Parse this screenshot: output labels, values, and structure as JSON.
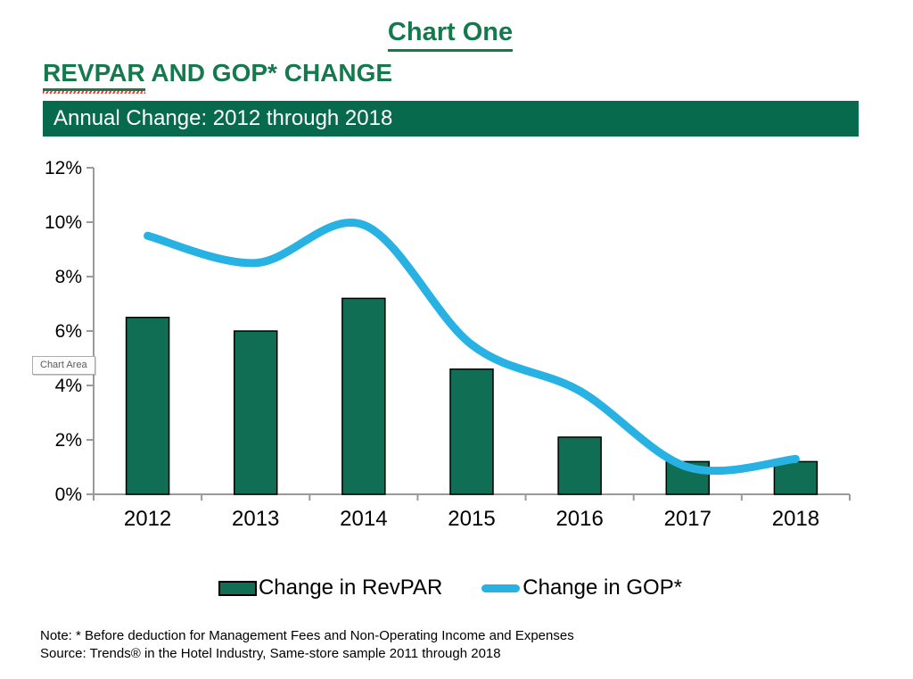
{
  "header": {
    "title": "Chart One",
    "subtitle_revpar": "REVPAR",
    "subtitle_rest": " AND GOP* CHANGE"
  },
  "banner": {
    "text": "Annual Change: 2012 through 2018"
  },
  "chart_area_tooltip": {
    "text": "Chart Area"
  },
  "colors": {
    "title_green": "#15794E",
    "banner_bg": "#076A4D",
    "bar_fill": "#106E55",
    "bar_border": "#000000",
    "line_blue": "#27B2E3",
    "axis_gray": "#9a9a9a",
    "tick_text": "#000000"
  },
  "legend": {
    "items": [
      {
        "label": "Change in RevPAR",
        "swatch": "bar-swatch"
      },
      {
        "label": "Change in GOP*",
        "swatch": "line-swatch"
      }
    ]
  },
  "chart_data": {
    "type": "bar+line",
    "categories": [
      "2012",
      "2013",
      "2014",
      "2015",
      "2016",
      "2017",
      "2018"
    ],
    "series": [
      {
        "name": "Change in RevPAR",
        "type": "bar",
        "values": [
          6.5,
          6.0,
          7.2,
          4.6,
          2.1,
          1.2,
          1.2
        ]
      },
      {
        "name": "Change in GOP*",
        "type": "line",
        "values": [
          9.5,
          8.5,
          9.9,
          5.5,
          3.8,
          1.0,
          1.3
        ]
      }
    ],
    "ylim": [
      0,
      12
    ],
    "ytick_step": 2,
    "yticks": [
      "0%",
      "2%",
      "4%",
      "6%",
      "8%",
      "10%",
      "12%"
    ],
    "xlabel": "",
    "ylabel": "",
    "grid": false,
    "legend_position": "bottom",
    "line_smoothing": true
  },
  "footer": {
    "note": "Note: * Before deduction for Management Fees and Non-Operating Income and Expenses",
    "source": "Source: Trends® in the Hotel Industry, Same-store sample 2011 through 2018"
  }
}
